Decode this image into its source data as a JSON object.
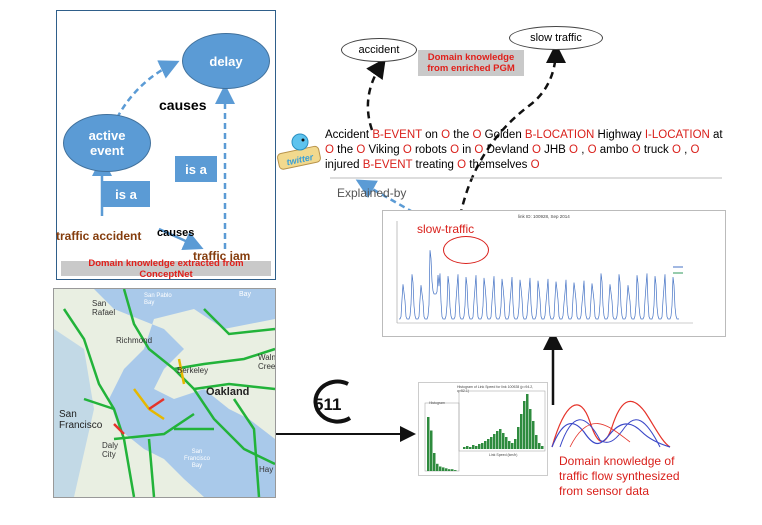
{
  "conceptnet": {
    "delay": "delay",
    "active_event_line1": "active",
    "active_event_line2": "event",
    "causes_top": "causes",
    "is_a_left": "is a",
    "is_a_right": "is a",
    "traffic_accident": "traffic accident",
    "causes_bottom": "causes",
    "traffic_jam": "traffic jam",
    "caption": "Domain knowledge extracted from ConceptNet"
  },
  "pgm": {
    "accident": "accident",
    "slow_traffic": "slow traffic",
    "caption_line1": "Domain knowledge",
    "caption_line2": "from enriched PGM"
  },
  "twitter_logo": "twitter",
  "sentence": [
    {
      "t": "Accident ",
      "tag": false
    },
    {
      "t": "B-EVENT",
      "tag": true
    },
    {
      "t": " on ",
      "tag": false
    },
    {
      "t": "O",
      "tag": true
    },
    {
      "t": " the ",
      "tag": false
    },
    {
      "t": "O",
      "tag": true
    },
    {
      "t": " Golden ",
      "tag": false
    },
    {
      "t": "B-LOCATION",
      "tag": true
    },
    {
      "t": " Highway ",
      "tag": false
    },
    {
      "t": "I-LOCATION",
      "tag": true
    },
    {
      "t": " at ",
      "tag": false
    },
    {
      "t": "O",
      "tag": true
    },
    {
      "t": " the ",
      "tag": false
    },
    {
      "t": "O",
      "tag": true
    },
    {
      "t": " Viking ",
      "tag": false
    },
    {
      "t": "O",
      "tag": true
    },
    {
      "t": " robots ",
      "tag": false
    },
    {
      "t": "O",
      "tag": true
    },
    {
      "t": " in ",
      "tag": false
    },
    {
      "t": "O",
      "tag": true
    },
    {
      "t": " Devland ",
      "tag": false
    },
    {
      "t": "O",
      "tag": true
    },
    {
      "t": " JHB ",
      "tag": false
    },
    {
      "t": "O",
      "tag": true
    },
    {
      "t": " , ",
      "tag": false
    },
    {
      "t": "O",
      "tag": true
    },
    {
      "t": " ambo ",
      "tag": false
    },
    {
      "t": "O",
      "tag": true
    },
    {
      "t": " truck ",
      "tag": false
    },
    {
      "t": "O",
      "tag": true
    },
    {
      "t": " , ",
      "tag": false
    },
    {
      "t": "O",
      "tag": true
    },
    {
      "t": " injured ",
      "tag": false
    },
    {
      "t": "B-EVENT",
      "tag": true
    },
    {
      "t": " treating ",
      "tag": false
    },
    {
      "t": "O",
      "tag": true
    },
    {
      "t": " themselves ",
      "tag": false
    },
    {
      "t": "O",
      "tag": true
    }
  ],
  "explained_by": "Explained-by",
  "slow_traffic_annotation": "slow-traffic",
  "timeseries_title": "link ID: 100928, Sep 2014",
  "map_labels": {
    "san_rafael_1": "San",
    "san_rafael_2": "Rafael",
    "san_pablo_1": "San Pablo",
    "san_pablo_2": "Bay",
    "richmond": "Richmond",
    "berkeley": "Berkeley",
    "oakland": "Oakland",
    "walnut_1": "Walnu",
    "walnut_2": "Cree",
    "sf_1": "San",
    "sf_2": "Francisco",
    "daly_1": "Daly",
    "daly_2": "City",
    "sf_bay_1": "San",
    "sf_bay_2": "Francisco",
    "sf_bay_3": "Bay",
    "hay": "Hay",
    "bay": "Bay"
  },
  "logo_511": "511",
  "histogram_left_title": "Histogram",
  "histogram_right_title": "Histogram of Link Speed for link 100928 (p=94.2, q=52.1)",
  "histogram_xlabel": "Link Speed (km/h)",
  "sensor_caption": [
    "Domain knowledge of",
    "traffic flow synthesized",
    "from sensor data"
  ],
  "colors": {
    "blue_fill": "#5b9bd5",
    "red_text": "#d9201b",
    "brown": "#843c0c",
    "map_green": "#22b33a"
  }
}
